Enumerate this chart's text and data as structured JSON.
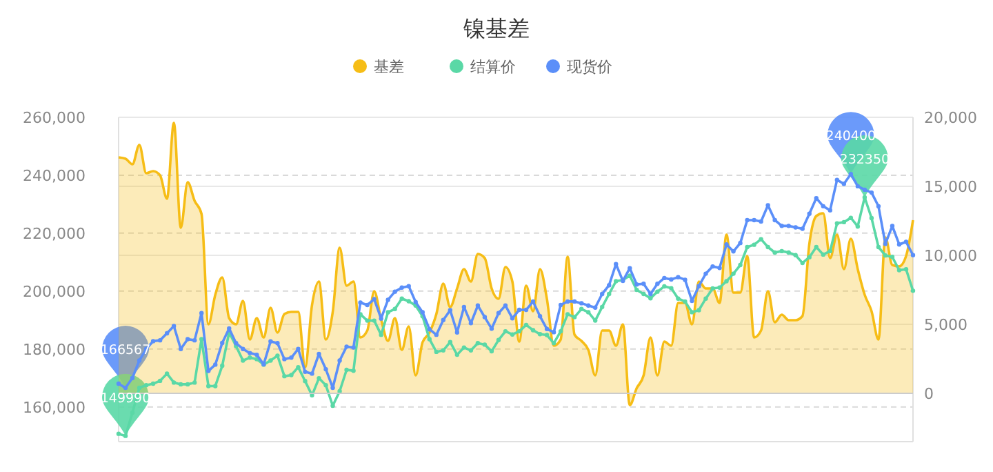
{
  "chart_data": {
    "type": "line",
    "title": "镍基差",
    "legend": "top",
    "grid": true,
    "categories": [
      null,
      null,
      null,
      null,
      null,
      null,
      null,
      null,
      null,
      null,
      null,
      null,
      null,
      null,
      null,
      null,
      null,
      null,
      null,
      null,
      null,
      null,
      null,
      null,
      null,
      null,
      null,
      null,
      null,
      null,
      null,
      null,
      null,
      null,
      null,
      null,
      null,
      null,
      null,
      null,
      null,
      null,
      null,
      null,
      null,
      null,
      null,
      null,
      null,
      null,
      null,
      null,
      null,
      null,
      null,
      null,
      null,
      null,
      null,
      null,
      null,
      null,
      null,
      null,
      null,
      null,
      null,
      null,
      null,
      null,
      null,
      null,
      null,
      null,
      null,
      null,
      null,
      null,
      null,
      null,
      null,
      null,
      null,
      null,
      null,
      null,
      null,
      null,
      null,
      null,
      null,
      null,
      null,
      null,
      null,
      null,
      null,
      null,
      null,
      null,
      null,
      null,
      null,
      null,
      null,
      null,
      null,
      null,
      null,
      null,
      null,
      null,
      null,
      null,
      null,
      null
    ],
    "ylim": [
      148000,
      260000
    ],
    "yticks": [
      {
        "value": 160000,
        "label": "160,000"
      },
      {
        "value": 180000,
        "label": "180,000"
      },
      {
        "value": 200000,
        "label": "200,000"
      },
      {
        "value": 220000,
        "label": "220,000"
      },
      {
        "value": 240000,
        "label": "240,000"
      },
      {
        "value": 260000,
        "label": "260,000"
      }
    ],
    "y2lim": [
      -3500,
      20000
    ],
    "y2ticks": [
      0,
      {
        "value": 5000,
        "label": "5,000"
      },
      {
        "value": 10000,
        "label": "10,000"
      },
      {
        "value": 15000,
        "label": "15,000"
      },
      {
        "value": 20000,
        "label": "20,000"
      }
    ],
    "series": [
      {
        "name": "基差",
        "type": "area",
        "axis": "y2",
        "color": "#f6bd16",
        "marker": "none",
        "values": [
          17100,
          17000,
          16600,
          18000,
          15950,
          16100,
          15800,
          14100,
          19600,
          12000,
          15300,
          13950,
          13000,
          5000,
          7150,
          8400,
          5450,
          5000,
          6700,
          3900,
          5450,
          4050,
          6200,
          4400,
          5750,
          5900,
          5900,
          1900,
          6400,
          8100,
          3900,
          5900,
          10550,
          7800,
          8100,
          4050,
          4550,
          7400,
          5350,
          3800,
          5450,
          3150,
          4850,
          1300,
          3700,
          4400,
          5750,
          7950,
          6250,
          7600,
          9000,
          8100,
          10100,
          9800,
          7600,
          6850,
          9150,
          8100,
          3750,
          7800,
          5950,
          9000,
          6850,
          3450,
          3900,
          9900,
          4250,
          3800,
          3150,
          1300,
          4550,
          4550,
          3450,
          5000,
          -850,
          370,
          1300,
          4050,
          1300,
          3750,
          3450,
          6550,
          6550,
          5000,
          8100,
          7600,
          7600,
          6550,
          11500,
          7300,
          7300,
          9950,
          4050,
          4550,
          7400,
          5150,
          5700,
          5300,
          5300,
          5600,
          10850,
          12850,
          13050,
          9800,
          11500,
          9000,
          11200,
          9000,
          7150,
          5950,
          3900,
          11300,
          9300,
          9200,
          9950,
          12550
        ]
      },
      {
        "name": "结算价",
        "color": "#5ad8a6",
        "marker": "circle",
        "values": [
          150700,
          149990,
          158000,
          166600,
          167500,
          168000,
          169000,
          171500,
          168400,
          167800,
          167800,
          168400,
          183400,
          167200,
          167200,
          174200,
          185700,
          181000,
          176000,
          177000,
          176500,
          174600,
          176000,
          177700,
          170600,
          171000,
          173700,
          168900,
          164000,
          169900,
          167500,
          160400,
          165400,
          172800,
          172500,
          192000,
          189800,
          189800,
          184900,
          192700,
          193800,
          197400,
          196500,
          195000,
          191300,
          183400,
          179000,
          179500,
          182400,
          178000,
          180500,
          179500,
          182000,
          181500,
          179200,
          183100,
          186100,
          185000,
          186100,
          188300,
          186500,
          185100,
          184800,
          182000,
          186100,
          192000,
          191000,
          193800,
          192700,
          189800,
          194500,
          199000,
          203400,
          203800,
          205300,
          200400,
          199000,
          197500,
          199800,
          201600,
          201000,
          197400,
          196400,
          192700,
          193400,
          197400,
          200900,
          201200,
          203400,
          206000,
          209000,
          215200,
          216000,
          217900,
          215200,
          213300,
          213800,
          213300,
          212400,
          209700,
          211700,
          215200,
          212600,
          213800,
          223400,
          223800,
          225300,
          222300,
          232350,
          225200,
          215200,
          212300,
          211800,
          207200,
          207500,
          200100
        ]
      },
      {
        "name": "现货价",
        "color": "#5b8ff9",
        "marker": "circle",
        "values": [
          168000,
          166567,
          170000,
          176000,
          180000,
          182700,
          183000,
          185400,
          187900,
          180000,
          183400,
          183000,
          192400,
          172400,
          174600,
          182100,
          187100,
          182000,
          180000,
          178600,
          178000,
          174700,
          182600,
          182000,
          176500,
          177000,
          180000,
          172100,
          171500,
          178300,
          173000,
          166600,
          176000,
          180800,
          180500,
          196000,
          195200,
          197200,
          190500,
          197000,
          199800,
          201200,
          201700,
          196200,
          192700,
          186800,
          184900,
          190000,
          193400,
          185700,
          194500,
          188900,
          195000,
          191000,
          187000,
          192400,
          195000,
          190600,
          193500,
          193500,
          196400,
          191300,
          186900,
          185800,
          195200,
          196400,
          196400,
          195800,
          195000,
          194300,
          199000,
          202000,
          209300,
          203500,
          207900,
          202300,
          202500,
          199000,
          202500,
          204500,
          204000,
          204800,
          203900,
          196600,
          201700,
          206000,
          208500,
          208000,
          216100,
          213700,
          216600,
          224500,
          224500,
          224000,
          229600,
          224500,
          222500,
          222500,
          222000,
          221500,
          226700,
          232100,
          229300,
          227900,
          238400,
          237000,
          240400,
          236200,
          235000,
          234000,
          229300,
          216300,
          222500,
          216100,
          217000,
          212400
        ]
      }
    ],
    "annotations": [
      {
        "text": "166567",
        "y": 166567
      },
      {
        "text": "149990",
        "y": 149990
      },
      {
        "text": "240400",
        "y": 240400
      },
      {
        "text": "232350",
        "y": 232350
      }
    ]
  }
}
